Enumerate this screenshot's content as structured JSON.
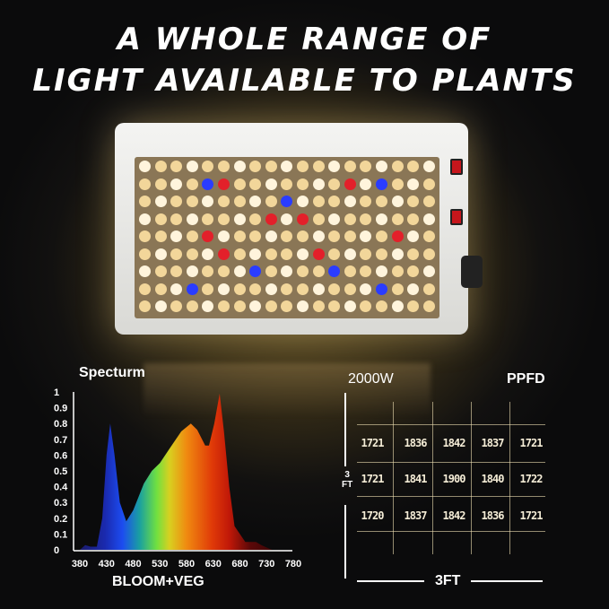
{
  "headline": {
    "line1": "A WHOLE RANGE OF",
    "line2": "LIGHT AVAILABLE TO PLANTS"
  },
  "chart_data": {
    "type": "area",
    "title": "Specturm",
    "xlabel": "BLOOM+VEG",
    "ylabel": "",
    "xlim": [
      380,
      780
    ],
    "ylim": [
      0,
      1
    ],
    "x_ticks": [
      "380",
      "430",
      "480",
      "530",
      "580",
      "630",
      "680",
      "730",
      "780"
    ],
    "y_ticks": [
      "0",
      "0.1",
      "0.2",
      "0.3",
      "0.4",
      "0.5",
      "0.6",
      "0.7",
      "0.8",
      "0.9",
      "1"
    ],
    "x": [
      380,
      390,
      400,
      412,
      422,
      430,
      437,
      445,
      455,
      467,
      480,
      500,
      515,
      530,
      550,
      570,
      588,
      600,
      615,
      622,
      632,
      642,
      650,
      660,
      670,
      690,
      710,
      720,
      740,
      780
    ],
    "values": [
      0,
      0.03,
      0.02,
      0.02,
      0.2,
      0.6,
      0.8,
      0.6,
      0.3,
      0.18,
      0.25,
      0.42,
      0.5,
      0.55,
      0.65,
      0.75,
      0.8,
      0.76,
      0.66,
      0.66,
      0.8,
      0.99,
      0.75,
      0.4,
      0.15,
      0.05,
      0.05,
      0.03,
      0,
      0
    ],
    "grid": false
  },
  "ppfd": {
    "power": "2000W",
    "label": "PPFD",
    "height_label": "3\nFT",
    "width_label": "3FT",
    "rows": [
      [
        "1721",
        "1836",
        "1842",
        "1837",
        "1721"
      ],
      [
        "1721",
        "1841",
        "1900",
        "1840",
        "1722"
      ],
      [
        "1720",
        "1837",
        "1842",
        "1836",
        "1721"
      ]
    ]
  },
  "colors": {
    "blue": "#2a3cff",
    "red": "#e3202a",
    "warm": "#f2d69a"
  }
}
